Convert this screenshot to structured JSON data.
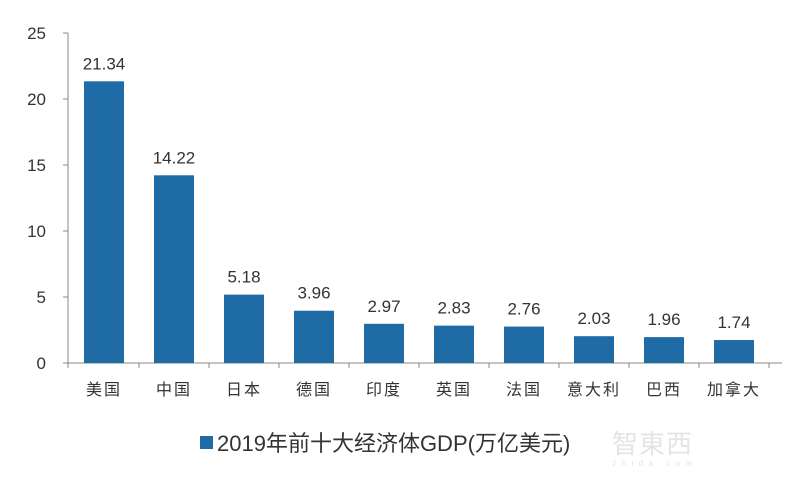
{
  "chart_data": {
    "type": "bar",
    "categories": [
      "美国",
      "中国",
      "日本",
      "德国",
      "印度",
      "英国",
      "法国",
      "意大利",
      "巴西",
      "加拿大"
    ],
    "series": [
      {
        "name": "2019年前十大经济体GDP(万亿美元)",
        "values": [
          21.34,
          14.22,
          5.18,
          3.96,
          2.97,
          2.83,
          2.76,
          2.03,
          1.96,
          1.74
        ],
        "color": "#1f6ba5"
      }
    ],
    "data_labels": [
      "21.34",
      "14.22",
      "5.18",
      "3.96",
      "2.97",
      "2.83",
      "2.76",
      "2.03",
      "1.96",
      "1.74"
    ],
    "ylim": [
      0,
      25
    ],
    "yticks": [
      0,
      5,
      10,
      15,
      20,
      25
    ],
    "grid": false,
    "legend": "bottom"
  },
  "watermark": {
    "text": "智東西",
    "sub": "zhidx.com"
  }
}
